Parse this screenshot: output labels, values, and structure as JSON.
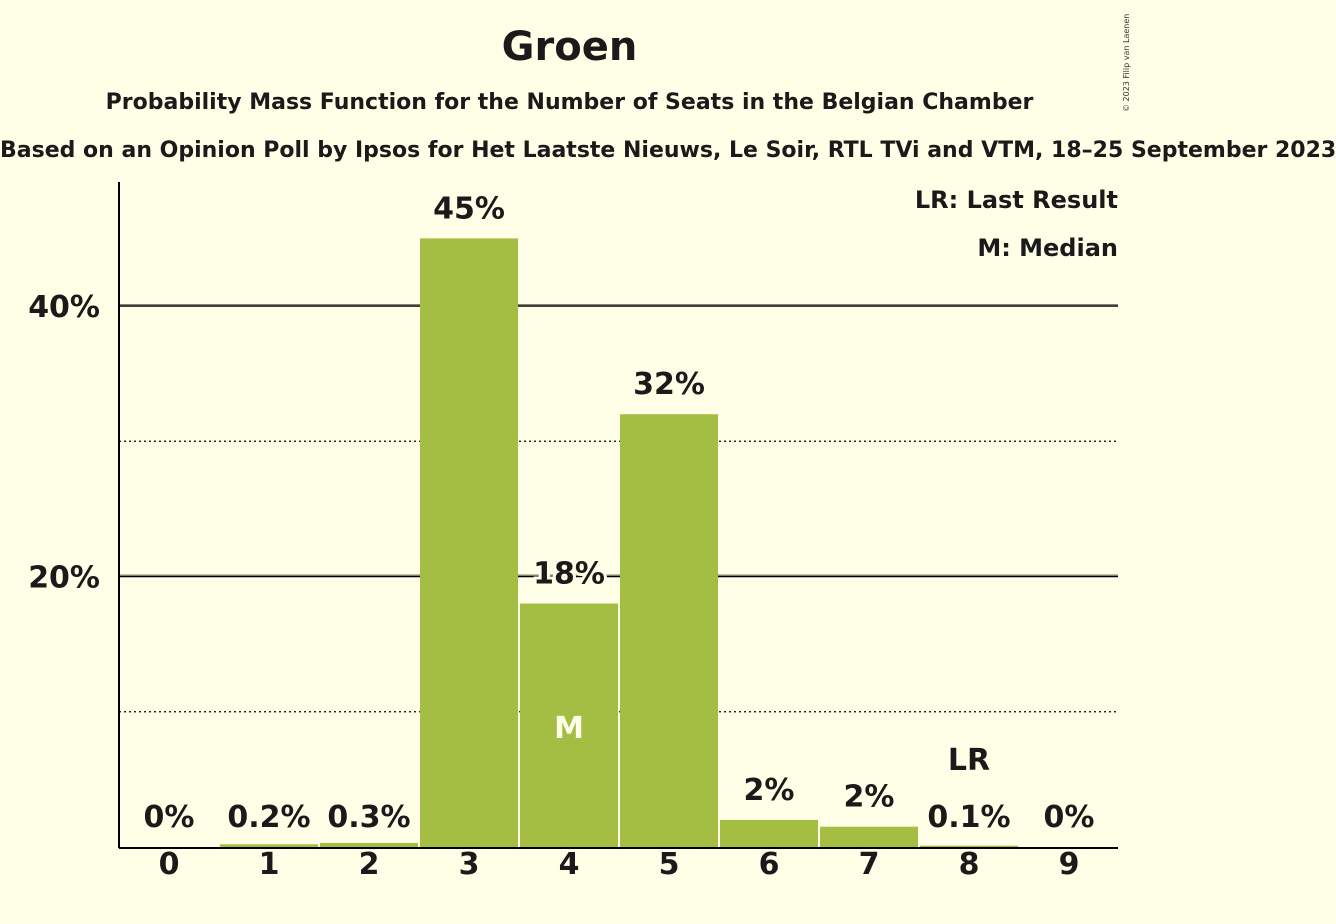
{
  "chart_data": {
    "type": "bar",
    "title": "Groen",
    "subtitle": "Probability Mass Function for the Number of Seats in the Belgian Chamber",
    "source": "Based on an Opinion Poll by Ipsos for Het Laatste Nieuws, Le Soir, RTL TVi and VTM, 18–25 September 2023",
    "copyright": "© 2023 Filip van Laenen",
    "categories": [
      "0",
      "1",
      "2",
      "3",
      "4",
      "5",
      "6",
      "7",
      "8",
      "9"
    ],
    "values": [
      0,
      0.2,
      0.3,
      45,
      18,
      32,
      2,
      1.5,
      0.1,
      0
    ],
    "value_labels": [
      "0%",
      "0.2%",
      "0.3%",
      "45%",
      "18%",
      "32%",
      "2%",
      "2%",
      "0.1%",
      "0%"
    ],
    "ylim": [
      0,
      49
    ],
    "y_ticks": [
      20,
      40
    ],
    "y_tick_labels": [
      "20%",
      "40%"
    ],
    "minor_gridlines": [
      10,
      30
    ],
    "median": "4",
    "median_label": "M",
    "last_result": "8",
    "last_result_label": "LR",
    "legend": {
      "lr": "LR: Last Result",
      "m": "M: Median"
    },
    "colors": {
      "bar": "#A3BE43",
      "background": "#FFFEE6",
      "text": "#1a1a1a"
    },
    "grid": true,
    "legend_placement": "top-right"
  }
}
